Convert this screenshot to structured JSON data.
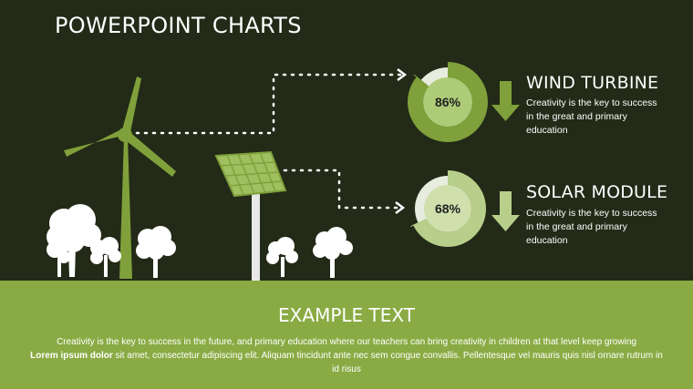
{
  "title": "POWERPOINT CHARTS",
  "colors": {
    "background": "#232a17",
    "accent_dark": "#7fa03a",
    "accent_light": "#b7cf8a",
    "gauge_remainder": "#e8ecdf",
    "footer": "#8aab44",
    "tree": "#ffffff"
  },
  "chart_data": [
    {
      "type": "pie",
      "labels": [
        "WIND TURBINE"
      ],
      "values": [
        86
      ],
      "value_label": "86%"
    },
    {
      "type": "pie",
      "labels": [
        "SOLAR MODULE"
      ],
      "values": [
        68
      ],
      "value_label": "68%"
    }
  ],
  "panels": [
    {
      "heading": "WIND TURBINE",
      "description": "Creativity is the key to success in the great and primary education",
      "arrow_icon": "down-arrow-icon"
    },
    {
      "heading": "SOLAR MODULE",
      "description": "Creativity is the key to success in the great and primary education",
      "arrow_icon": "down-arrow-icon"
    }
  ],
  "footer": {
    "heading": "EXAMPLE TEXT",
    "line1": "Creativity is the key to success in the future, and primary education where our teachers can bring creativity in children at that level keep growing",
    "bold_lead": "Lorem ipsum dolor",
    "rest": " sit amet, consectetur adipiscing elit. Aliquam tincidunt ante nec sem congue convallis. Pellentesque vel mauris quis nisl ornare rutrum in id risus"
  }
}
